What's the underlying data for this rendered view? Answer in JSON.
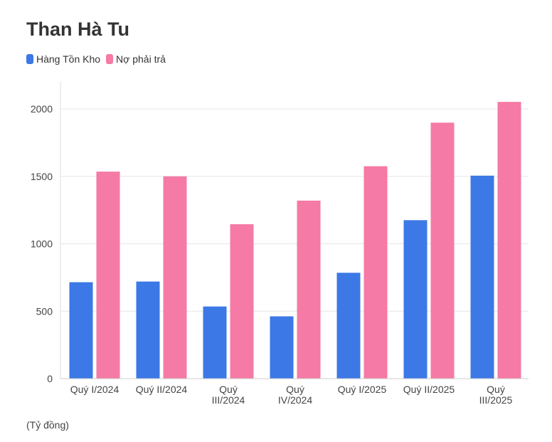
{
  "title": "Than Hà Tu",
  "unit_note": "(Tỷ đồng)",
  "colors": {
    "inventory": "#3c78e6",
    "payables": "#f57aa5",
    "grid": "#e6e6e6"
  },
  "chart_data": {
    "type": "bar",
    "title": "Than Hà Tu",
    "categories": [
      [
        "Quý I/2024"
      ],
      [
        "Quý II/2024"
      ],
      [
        "Quý",
        "III/2024"
      ],
      [
        "Quý",
        "IV/2024"
      ],
      [
        "Quý I/2025"
      ],
      [
        "Quý II/2025"
      ],
      [
        "Quý",
        "III/2025"
      ]
    ],
    "series": [
      {
        "name": "Hàng Tồn Kho",
        "color": "#3c78e6",
        "values": [
          715,
          720,
          535,
          462,
          785,
          1175,
          1505
        ]
      },
      {
        "name": "Nợ phải trả",
        "color": "#f57aa5",
        "values": [
          1535,
          1500,
          1145,
          1320,
          1575,
          1898,
          2052
        ]
      }
    ],
    "ylim": [
      0,
      2200
    ],
    "yticks": [
      0,
      500,
      1000,
      1500,
      2000
    ],
    "grid": true,
    "legend": "top-left"
  }
}
